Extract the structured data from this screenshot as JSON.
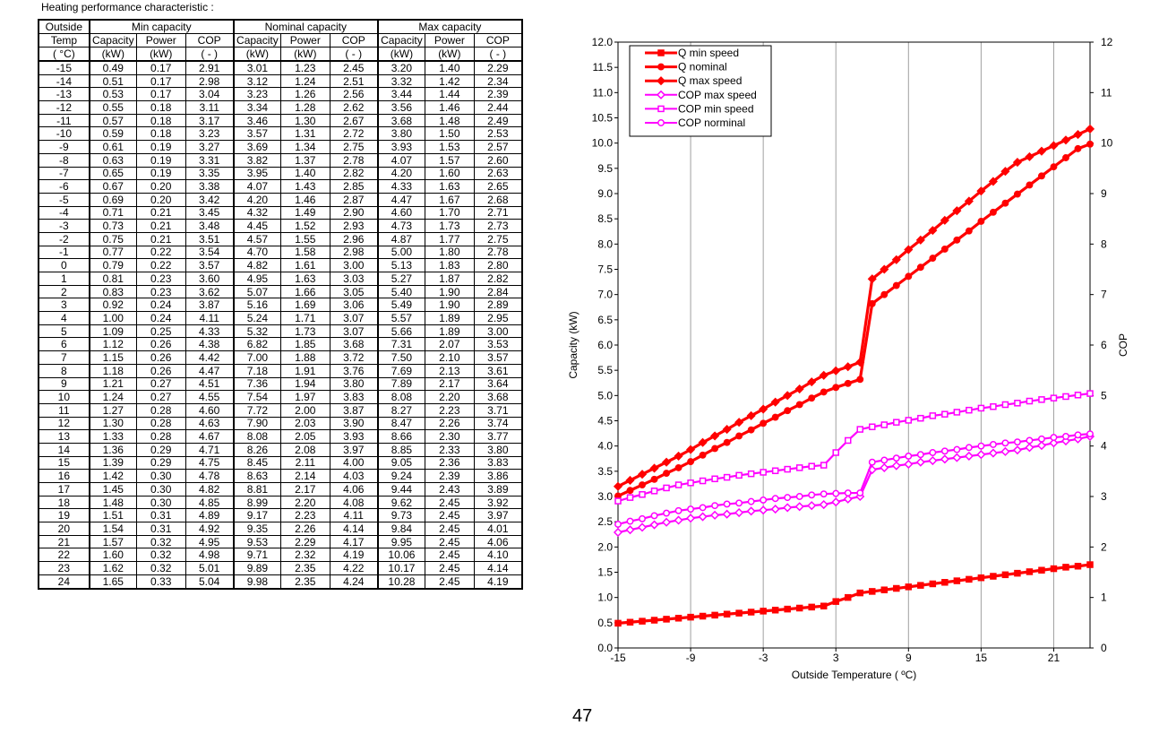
{
  "caption": "Heating performance  characteristic  :",
  "page_number": "47",
  "table": {
    "header_row1": [
      "Outside",
      "Min capacity",
      "Nominal capacity",
      "Max capacity"
    ],
    "header_row2": [
      "Temp",
      "Capacity",
      "Power",
      "COP",
      "Capacity",
      "Power",
      "COP",
      "Capacity",
      "Power",
      "COP"
    ],
    "header_row3": [
      "( °C)",
      "(kW)",
      "(kW)",
      "( - )",
      "(kW)",
      "(kW)",
      "( - )",
      "(kW)",
      "(kW)",
      "( - )"
    ],
    "rows": [
      [
        "-15",
        "0.49",
        "0.17",
        "2.91",
        "3.01",
        "1.23",
        "2.45",
        "3.20",
        "1.40",
        "2.29"
      ],
      [
        "-14",
        "0.51",
        "0.17",
        "2.98",
        "3.12",
        "1.24",
        "2.51",
        "3.32",
        "1.42",
        "2.34"
      ],
      [
        "-13",
        "0.53",
        "0.17",
        "3.04",
        "3.23",
        "1.26",
        "2.56",
        "3.44",
        "1.44",
        "2.39"
      ],
      [
        "-12",
        "0.55",
        "0.18",
        "3.11",
        "3.34",
        "1.28",
        "2.62",
        "3.56",
        "1.46",
        "2.44"
      ],
      [
        "-11",
        "0.57",
        "0.18",
        "3.17",
        "3.46",
        "1.30",
        "2.67",
        "3.68",
        "1.48",
        "2.49"
      ],
      [
        "-10",
        "0.59",
        "0.18",
        "3.23",
        "3.57",
        "1.31",
        "2.72",
        "3.80",
        "1.50",
        "2.53"
      ],
      [
        "-9",
        "0.61",
        "0.19",
        "3.27",
        "3.69",
        "1.34",
        "2.75",
        "3.93",
        "1.53",
        "2.57"
      ],
      [
        "-8",
        "0.63",
        "0.19",
        "3.31",
        "3.82",
        "1.37",
        "2.78",
        "4.07",
        "1.57",
        "2.60"
      ],
      [
        "-7",
        "0.65",
        "0.19",
        "3.35",
        "3.95",
        "1.40",
        "2.82",
        "4.20",
        "1.60",
        "2.63"
      ],
      [
        "-6",
        "0.67",
        "0.20",
        "3.38",
        "4.07",
        "1.43",
        "2.85",
        "4.33",
        "1.63",
        "2.65"
      ],
      [
        "-5",
        "0.69",
        "0.20",
        "3.42",
        "4.20",
        "1.46",
        "2.87",
        "4.47",
        "1.67",
        "2.68"
      ],
      [
        "-4",
        "0.71",
        "0.21",
        "3.45",
        "4.32",
        "1.49",
        "2.90",
        "4.60",
        "1.70",
        "2.71"
      ],
      [
        "-3",
        "0.73",
        "0.21",
        "3.48",
        "4.45",
        "1.52",
        "2.93",
        "4.73",
        "1.73",
        "2.73"
      ],
      [
        "-2",
        "0.75",
        "0.21",
        "3.51",
        "4.57",
        "1.55",
        "2.96",
        "4.87",
        "1.77",
        "2.75"
      ],
      [
        "-1",
        "0.77",
        "0.22",
        "3.54",
        "4.70",
        "1.58",
        "2.98",
        "5.00",
        "1.80",
        "2.78"
      ],
      [
        "0",
        "0.79",
        "0.22",
        "3.57",
        "4.82",
        "1.61",
        "3.00",
        "5.13",
        "1.83",
        "2.80"
      ],
      [
        "1",
        "0.81",
        "0.23",
        "3.60",
        "4.95",
        "1.63",
        "3.03",
        "5.27",
        "1.87",
        "2.82"
      ],
      [
        "2",
        "0.83",
        "0.23",
        "3.62",
        "5.07",
        "1.66",
        "3.05",
        "5.40",
        "1.90",
        "2.84"
      ],
      [
        "3",
        "0.92",
        "0.24",
        "3.87",
        "5.16",
        "1.69",
        "3.06",
        "5.49",
        "1.90",
        "2.89"
      ],
      [
        "4",
        "1.00",
        "0.24",
        "4.11",
        "5.24",
        "1.71",
        "3.07",
        "5.57",
        "1.89",
        "2.95"
      ],
      [
        "5",
        "1.09",
        "0.25",
        "4.33",
        "5.32",
        "1.73",
        "3.07",
        "5.66",
        "1.89",
        "3.00"
      ],
      [
        "6",
        "1.12",
        "0.26",
        "4.38",
        "6.82",
        "1.85",
        "3.68",
        "7.31",
        "2.07",
        "3.53"
      ],
      [
        "7",
        "1.15",
        "0.26",
        "4.42",
        "7.00",
        "1.88",
        "3.72",
        "7.50",
        "2.10",
        "3.57"
      ],
      [
        "8",
        "1.18",
        "0.26",
        "4.47",
        "7.18",
        "1.91",
        "3.76",
        "7.69",
        "2.13",
        "3.61"
      ],
      [
        "9",
        "1.21",
        "0.27",
        "4.51",
        "7.36",
        "1.94",
        "3.80",
        "7.89",
        "2.17",
        "3.64"
      ],
      [
        "10",
        "1.24",
        "0.27",
        "4.55",
        "7.54",
        "1.97",
        "3.83",
        "8.08",
        "2.20",
        "3.68"
      ],
      [
        "11",
        "1.27",
        "0.28",
        "4.60",
        "7.72",
        "2.00",
        "3.87",
        "8.27",
        "2.23",
        "3.71"
      ],
      [
        "12",
        "1.30",
        "0.28",
        "4.63",
        "7.90",
        "2.03",
        "3.90",
        "8.47",
        "2.26",
        "3.74"
      ],
      [
        "13",
        "1.33",
        "0.28",
        "4.67",
        "8.08",
        "2.05",
        "3.93",
        "8.66",
        "2.30",
        "3.77"
      ],
      [
        "14",
        "1.36",
        "0.29",
        "4.71",
        "8.26",
        "2.08",
        "3.97",
        "8.85",
        "2.33",
        "3.80"
      ],
      [
        "15",
        "1.39",
        "0.29",
        "4.75",
        "8.45",
        "2.11",
        "4.00",
        "9.05",
        "2.36",
        "3.83"
      ],
      [
        "16",
        "1.42",
        "0.30",
        "4.78",
        "8.63",
        "2.14",
        "4.03",
        "9.24",
        "2.39",
        "3.86"
      ],
      [
        "17",
        "1.45",
        "0.30",
        "4.82",
        "8.81",
        "2.17",
        "4.06",
        "9.44",
        "2.43",
        "3.89"
      ],
      [
        "18",
        "1.48",
        "0.30",
        "4.85",
        "8.99",
        "2.20",
        "4.08",
        "9.62",
        "2.45",
        "3.92"
      ],
      [
        "19",
        "1.51",
        "0.31",
        "4.89",
        "9.17",
        "2.23",
        "4.11",
        "9.73",
        "2.45",
        "3.97"
      ],
      [
        "20",
        "1.54",
        "0.31",
        "4.92",
        "9.35",
        "2.26",
        "4.14",
        "9.84",
        "2.45",
        "4.01"
      ],
      [
        "21",
        "1.57",
        "0.32",
        "4.95",
        "9.53",
        "2.29",
        "4.17",
        "9.95",
        "2.45",
        "4.06"
      ],
      [
        "22",
        "1.60",
        "0.32",
        "4.98",
        "9.71",
        "2.32",
        "4.19",
        "10.06",
        "2.45",
        "4.10"
      ],
      [
        "23",
        "1.62",
        "0.32",
        "5.01",
        "9.89",
        "2.35",
        "4.22",
        "10.17",
        "2.45",
        "4.14"
      ],
      [
        "24",
        "1.65",
        "0.33",
        "5.04",
        "9.98",
        "2.35",
        "4.24",
        "10.28",
        "2.45",
        "4.19"
      ]
    ]
  },
  "chart_data": {
    "type": "line",
    "xlabel": "Outside Temperature ( ºC)",
    "ylabel": "Capacity (kW)",
    "y2label": "COP",
    "xlim": [
      -15,
      24
    ],
    "ylim": [
      0,
      12
    ],
    "y2lim": [
      0,
      12
    ],
    "xticks": [
      "-15",
      "-9",
      "-3",
      "3",
      "9",
      "15",
      "21"
    ],
    "yticks": [
      "0.0",
      "0.5",
      "1.0",
      "1.5",
      "2.0",
      "2.5",
      "3.0",
      "3.5",
      "4.0",
      "4.5",
      "5.0",
      "5.5",
      "6.0",
      "6.5",
      "7.0",
      "7.5",
      "8.0",
      "8.5",
      "9.0",
      "9.5",
      "10.0",
      "10.5",
      "11.0",
      "11.5",
      "12.0"
    ],
    "y2ticks": [
      "0",
      "1",
      "2",
      "3",
      "4",
      "5",
      "6",
      "7",
      "8",
      "9",
      "10",
      "11",
      "12"
    ],
    "grid": true,
    "legend_position": "top-left",
    "x": [
      -15,
      -14,
      -13,
      -12,
      -11,
      -10,
      -9,
      -8,
      -7,
      -6,
      -5,
      -4,
      -3,
      -2,
      -1,
      0,
      1,
      2,
      3,
      4,
      5,
      6,
      7,
      8,
      9,
      10,
      11,
      12,
      13,
      14,
      15,
      16,
      17,
      18,
      19,
      20,
      21,
      22,
      23,
      24
    ],
    "series": [
      {
        "name": "Q min speed",
        "color": "#ff0000",
        "marker": "square",
        "filled": true,
        "values": [
          0.49,
          0.51,
          0.53,
          0.55,
          0.57,
          0.59,
          0.61,
          0.63,
          0.65,
          0.67,
          0.69,
          0.71,
          0.73,
          0.75,
          0.77,
          0.79,
          0.81,
          0.83,
          0.92,
          1.0,
          1.09,
          1.12,
          1.15,
          1.18,
          1.21,
          1.24,
          1.27,
          1.3,
          1.33,
          1.36,
          1.39,
          1.42,
          1.45,
          1.48,
          1.51,
          1.54,
          1.57,
          1.6,
          1.62,
          1.65
        ]
      },
      {
        "name": "Q nominal",
        "color": "#ff0000",
        "marker": "circle",
        "filled": true,
        "values": [
          3.01,
          3.12,
          3.23,
          3.34,
          3.46,
          3.57,
          3.69,
          3.82,
          3.95,
          4.07,
          4.2,
          4.32,
          4.45,
          4.57,
          4.7,
          4.82,
          4.95,
          5.07,
          5.16,
          5.24,
          5.32,
          6.82,
          7.0,
          7.18,
          7.36,
          7.54,
          7.72,
          7.9,
          8.08,
          8.26,
          8.45,
          8.63,
          8.81,
          8.99,
          9.17,
          9.35,
          9.53,
          9.71,
          9.89,
          9.98
        ]
      },
      {
        "name": "Q max speed",
        "color": "#ff0000",
        "marker": "diamond",
        "filled": true,
        "values": [
          3.2,
          3.32,
          3.44,
          3.56,
          3.68,
          3.8,
          3.93,
          4.07,
          4.2,
          4.33,
          4.47,
          4.6,
          4.73,
          4.87,
          5.0,
          5.13,
          5.27,
          5.4,
          5.49,
          5.57,
          5.66,
          7.31,
          7.5,
          7.69,
          7.89,
          8.08,
          8.27,
          8.47,
          8.66,
          8.85,
          9.05,
          9.24,
          9.44,
          9.62,
          9.73,
          9.84,
          9.95,
          10.06,
          10.17,
          10.28
        ]
      },
      {
        "name": "COP max speed",
        "color": "#ff00ff",
        "marker": "diamond",
        "filled": false,
        "values": [
          2.29,
          2.34,
          2.39,
          2.44,
          2.49,
          2.53,
          2.57,
          2.6,
          2.63,
          2.65,
          2.68,
          2.71,
          2.73,
          2.75,
          2.78,
          2.8,
          2.82,
          2.84,
          2.89,
          2.95,
          3.0,
          3.53,
          3.57,
          3.61,
          3.64,
          3.68,
          3.71,
          3.74,
          3.77,
          3.8,
          3.83,
          3.86,
          3.89,
          3.92,
          3.97,
          4.01,
          4.06,
          4.1,
          4.14,
          4.19
        ]
      },
      {
        "name": "COP min speed",
        "color": "#ff00ff",
        "marker": "square",
        "filled": false,
        "values": [
          2.91,
          2.98,
          3.04,
          3.11,
          3.17,
          3.23,
          3.27,
          3.31,
          3.35,
          3.38,
          3.42,
          3.45,
          3.48,
          3.51,
          3.54,
          3.57,
          3.6,
          3.62,
          3.87,
          4.11,
          4.33,
          4.38,
          4.42,
          4.47,
          4.51,
          4.55,
          4.6,
          4.63,
          4.67,
          4.71,
          4.75,
          4.78,
          4.82,
          4.85,
          4.89,
          4.92,
          4.95,
          4.98,
          5.01,
          5.04
        ]
      },
      {
        "name": "COP norminal",
        "color": "#ff00ff",
        "marker": "circle",
        "filled": false,
        "values": [
          2.45,
          2.51,
          2.56,
          2.62,
          2.67,
          2.72,
          2.75,
          2.78,
          2.82,
          2.85,
          2.87,
          2.9,
          2.93,
          2.96,
          2.98,
          3.0,
          3.03,
          3.05,
          3.06,
          3.07,
          3.07,
          3.68,
          3.72,
          3.76,
          3.8,
          3.83,
          3.87,
          3.9,
          3.93,
          3.97,
          4.0,
          4.03,
          4.06,
          4.08,
          4.11,
          4.14,
          4.17,
          4.19,
          4.22,
          4.24
        ]
      }
    ]
  }
}
